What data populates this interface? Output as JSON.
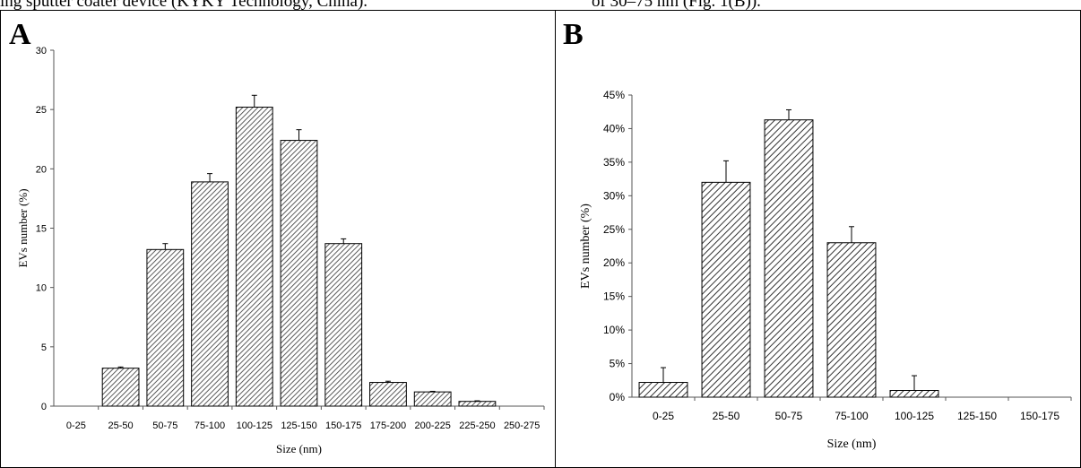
{
  "header_text": {
    "left": "ing sputter coater device (KYKY Technology, China).",
    "right": "of 30–75 nm (Fig. 1(B))."
  },
  "chart_data": [
    {
      "panel_label": "A",
      "type": "bar",
      "categories": [
        "0-25",
        "25-50",
        "50-75",
        "75-100",
        "100-125",
        "125-150",
        "150-175",
        "175-200",
        "200-225",
        "225-250",
        "250-275"
      ],
      "values": [
        0,
        3.2,
        13.2,
        18.9,
        25.2,
        22.4,
        13.7,
        2.0,
        1.2,
        0.4,
        0
      ],
      "errors": [
        0,
        0.1,
        0.5,
        0.7,
        1.0,
        0.9,
        0.4,
        0.1,
        0.05,
        0.05,
        0
      ],
      "xlabel": "Size (nm)",
      "ylabel": "EVs number  (%)",
      "ylim": [
        0,
        30
      ],
      "yticks": [
        "0",
        "5",
        "10",
        "15",
        "20",
        "25",
        "30"
      ],
      "grid": false,
      "pattern": "diagonal-hatch"
    },
    {
      "panel_label": "B",
      "type": "bar",
      "categories": [
        "0-25",
        "25-50",
        "50-75",
        "75-100",
        "100-125",
        "125-150",
        "150-175"
      ],
      "values": [
        2.2,
        32.0,
        41.3,
        23.0,
        1.0,
        0,
        0
      ],
      "errors": [
        2.2,
        3.2,
        1.5,
        2.4,
        2.2,
        0,
        0
      ],
      "xlabel": "Size (nm)",
      "ylabel": "EVs number  (%)",
      "ylim": [
        0,
        45
      ],
      "yticks": [
        "0%",
        "5%",
        "10%",
        "15%",
        "20%",
        "25%",
        "30%",
        "35%",
        "40%",
        "45%"
      ],
      "grid": false,
      "pattern": "diagonal-hatch"
    }
  ]
}
